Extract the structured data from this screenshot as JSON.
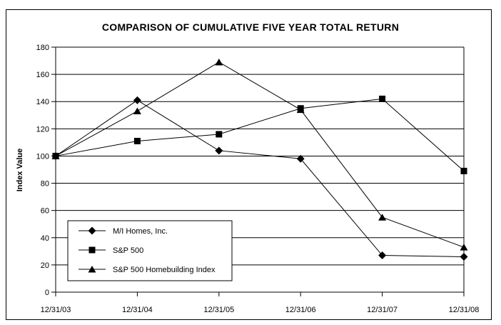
{
  "chart_data": {
    "type": "line",
    "title": "COMPARISON OF CUMULATIVE FIVE YEAR TOTAL RETURN",
    "xlabel": "",
    "ylabel": "Index Value",
    "categories": [
      "12/31/03",
      "12/31/04",
      "12/31/05",
      "12/31/06",
      "12/31/07",
      "12/31/08"
    ],
    "series": [
      {
        "name": "M/I Homes, Inc.",
        "marker": "diamond",
        "values": [
          100,
          141,
          104,
          98,
          27,
          26
        ]
      },
      {
        "name": "S&P 500",
        "marker": "square",
        "values": [
          100,
          111,
          116,
          135,
          142,
          89
        ]
      },
      {
        "name": "S&P 500 Homebuilding Index",
        "marker": "triangle",
        "values": [
          100,
          133,
          169,
          134,
          55,
          33
        ]
      }
    ],
    "ylim": [
      0,
      180
    ],
    "yticks": [
      0,
      20,
      40,
      60,
      80,
      100,
      120,
      140,
      160,
      180
    ],
    "grid": true,
    "legend_position": "inside-bottom-left",
    "line_color": "#000000",
    "marker_color": "#000000",
    "background_color": "#ffffff",
    "border_color": "#000000"
  }
}
